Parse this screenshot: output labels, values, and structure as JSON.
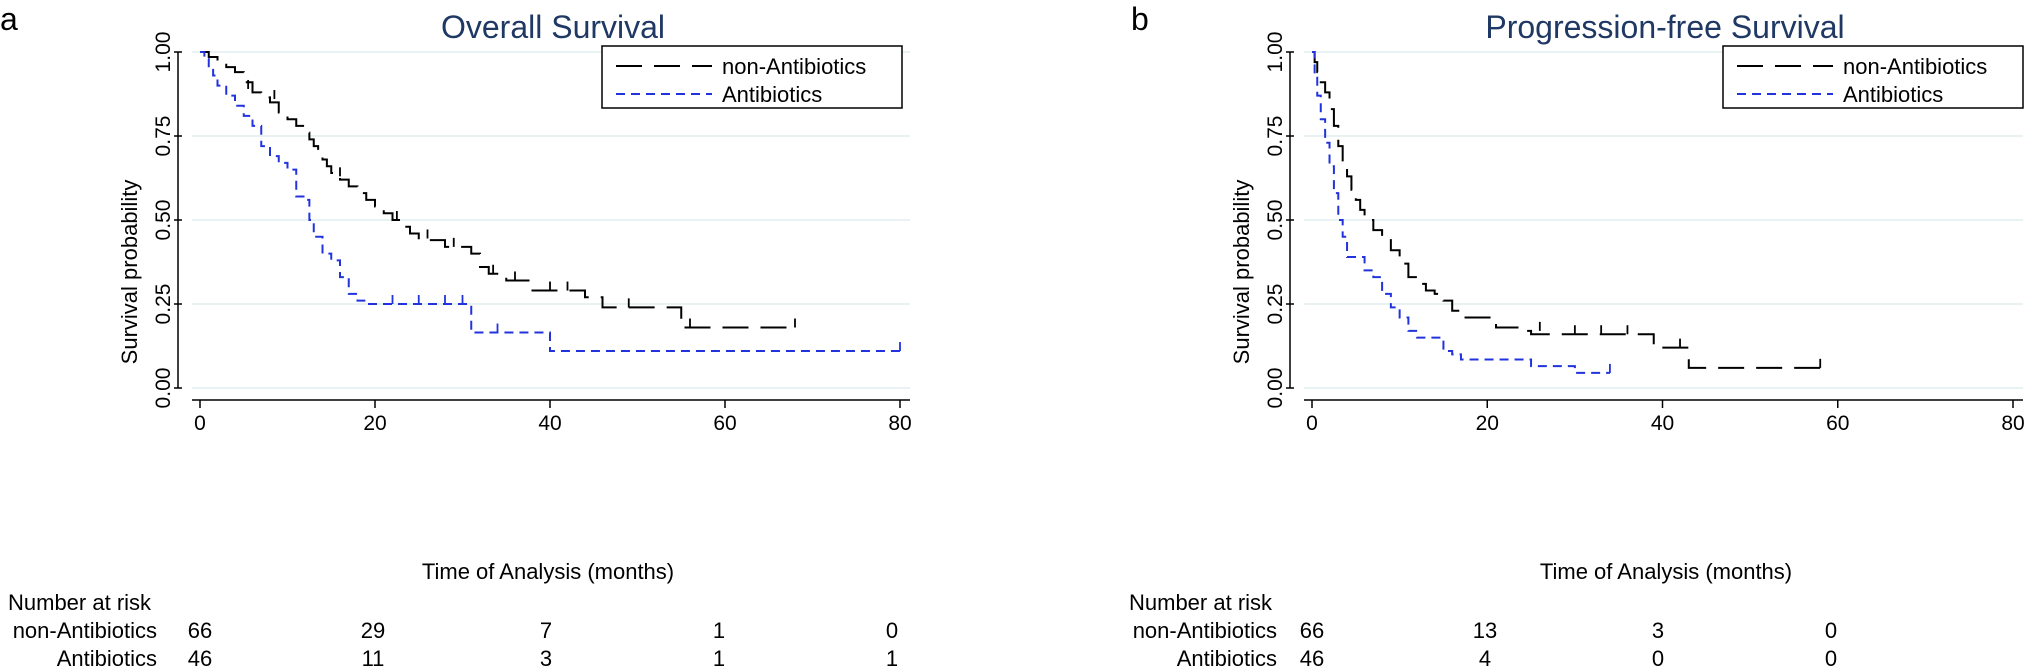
{
  "chart_data": [
    {
      "type": "line",
      "panel_label": "a",
      "title": "Overall Survival",
      "xlabel": "Time of Analysis (months)",
      "ylabel": "Survival probability",
      "xlim": [
        0,
        80
      ],
      "ylim": [
        0,
        1
      ],
      "xticks": [
        0,
        20,
        40,
        60,
        80
      ],
      "yticks": [
        "0.00",
        "0.25",
        "0.50",
        "0.75",
        "1.00"
      ],
      "grid": "horizontal",
      "legend_position": "top-right",
      "series": [
        {
          "name": "non-Antibiotics",
          "color": "#000000",
          "dash": "long-dash",
          "steps": [
            [
              0,
              1.0
            ],
            [
              1,
              0.985
            ],
            [
              2,
              0.97
            ],
            [
              3,
              0.955
            ],
            [
              4,
              0.94
            ],
            [
              5,
              0.91
            ],
            [
              6,
              0.88
            ],
            [
              7,
              0.865
            ],
            [
              8,
              0.85
            ],
            [
              9,
              0.82
            ],
            [
              10,
              0.8
            ],
            [
              11,
              0.78
            ],
            [
              12,
              0.76
            ],
            [
              12.5,
              0.74
            ],
            [
              13,
              0.72
            ],
            [
              13.5,
              0.7
            ],
            [
              14,
              0.68
            ],
            [
              14.5,
              0.66
            ],
            [
              15,
              0.64
            ],
            [
              16,
              0.62
            ],
            [
              17,
              0.6
            ],
            [
              18,
              0.58
            ],
            [
              19,
              0.56
            ],
            [
              20,
              0.54
            ],
            [
              21,
              0.52
            ],
            [
              22,
              0.5
            ],
            [
              23,
              0.48
            ],
            [
              24,
              0.46
            ],
            [
              25,
              0.44
            ],
            [
              28,
              0.42
            ],
            [
              31,
              0.4
            ],
            [
              32,
              0.36
            ],
            [
              33,
              0.34
            ],
            [
              35,
              0.32
            ],
            [
              38,
              0.29
            ],
            [
              44,
              0.27
            ],
            [
              46,
              0.24
            ],
            [
              55,
              0.18
            ],
            [
              68,
              0.18
            ]
          ],
          "censored": [
            [
              5.5,
              0.89
            ],
            [
              8.5,
              0.86
            ],
            [
              16,
              0.63
            ],
            [
              22.5,
              0.5
            ],
            [
              26,
              0.445
            ],
            [
              29,
              0.42
            ],
            [
              33.5,
              0.34
            ],
            [
              36,
              0.32
            ],
            [
              40,
              0.29
            ],
            [
              42,
              0.29
            ],
            [
              49,
              0.24
            ],
            [
              56,
              0.18
            ],
            [
              68,
              0.18
            ]
          ]
        },
        {
          "name": "Antibiotics",
          "color": "#2233dd",
          "dash": "short-dash",
          "steps": [
            [
              0,
              1.0
            ],
            [
              0.5,
              0.98
            ],
            [
              1,
              0.95
            ],
            [
              1.5,
              0.93
            ],
            [
              2,
              0.9
            ],
            [
              3,
              0.87
            ],
            [
              4,
              0.84
            ],
            [
              5,
              0.81
            ],
            [
              6,
              0.78
            ],
            [
              7,
              0.72
            ],
            [
              8,
              0.69
            ],
            [
              9,
              0.67
            ],
            [
              10,
              0.65
            ],
            [
              11,
              0.57
            ],
            [
              12,
              0.56
            ],
            [
              12.5,
              0.5
            ],
            [
              13,
              0.45
            ],
            [
              14,
              0.4
            ],
            [
              15,
              0.38
            ],
            [
              16,
              0.33
            ],
            [
              17,
              0.28
            ],
            [
              18,
              0.26
            ],
            [
              19,
              0.25
            ],
            [
              31,
              0.165
            ],
            [
              40,
              0.11
            ],
            [
              80,
              0.11
            ]
          ],
          "censored": [
            [
              22,
              0.25
            ],
            [
              25,
              0.25
            ],
            [
              28,
              0.25
            ],
            [
              30,
              0.25
            ],
            [
              34,
              0.165
            ],
            [
              80,
              0.11
            ]
          ]
        }
      ],
      "risk_table": {
        "heading": "Number at risk",
        "rows": [
          {
            "name": "non-Antibiotics",
            "values": [
              "66",
              "29",
              "7",
              "1",
              "0"
            ]
          },
          {
            "name": "Antibiotics",
            "values": [
              "46",
              "11",
              "3",
              "1",
              "1"
            ]
          }
        ]
      }
    },
    {
      "type": "line",
      "panel_label": "b",
      "title": "Progression-free Survival",
      "xlabel": "Time of Analysis (months)",
      "ylabel": "Survival probability",
      "xlim": [
        0,
        80
      ],
      "ylim": [
        0,
        1
      ],
      "xticks": [
        0,
        20,
        40,
        60,
        80
      ],
      "yticks": [
        "0.00",
        "0.25",
        "0.50",
        "0.75",
        "1.00"
      ],
      "grid": "horizontal",
      "legend_position": "top-right",
      "series": [
        {
          "name": "non-Antibiotics",
          "color": "#000000",
          "dash": "long-dash",
          "steps": [
            [
              0,
              1.0
            ],
            [
              0.3,
              0.97
            ],
            [
              0.6,
              0.94
            ],
            [
              1,
              0.91
            ],
            [
              1.5,
              0.88
            ],
            [
              2,
              0.83
            ],
            [
              2.5,
              0.78
            ],
            [
              3,
              0.72
            ],
            [
              3.5,
              0.67
            ],
            [
              4,
              0.63
            ],
            [
              4.5,
              0.59
            ],
            [
              5,
              0.56
            ],
            [
              5.5,
              0.53
            ],
            [
              6,
              0.5
            ],
            [
              7,
              0.47
            ],
            [
              8,
              0.44
            ],
            [
              9,
              0.41
            ],
            [
              10,
              0.37
            ],
            [
              11,
              0.33
            ],
            [
              12,
              0.31
            ],
            [
              13,
              0.29
            ],
            [
              14,
              0.28
            ],
            [
              15,
              0.26
            ],
            [
              16,
              0.23
            ],
            [
              17,
              0.21
            ],
            [
              19,
              0.21
            ],
            [
              21,
              0.18
            ],
            [
              24,
              0.17
            ],
            [
              25,
              0.16
            ],
            [
              38,
              0.16
            ],
            [
              39,
              0.12
            ],
            [
              42,
              0.12
            ],
            [
              43,
              0.06
            ],
            [
              58,
              0.06
            ]
          ],
          "censored": [
            [
              26,
              0.17
            ],
            [
              30,
              0.16
            ],
            [
              33,
              0.16
            ],
            [
              36,
              0.16
            ],
            [
              42,
              0.12
            ],
            [
              58,
              0.06
            ]
          ]
        },
        {
          "name": "Antibiotics",
          "color": "#2233dd",
          "dash": "short-dash",
          "steps": [
            [
              0,
              1.0
            ],
            [
              0.3,
              0.93
            ],
            [
              0.6,
              0.87
            ],
            [
              1,
              0.8
            ],
            [
              1.5,
              0.73
            ],
            [
              2,
              0.66
            ],
            [
              2.5,
              0.58
            ],
            [
              3,
              0.5
            ],
            [
              3.5,
              0.45
            ],
            [
              4,
              0.39
            ],
            [
              6,
              0.35
            ],
            [
              7,
              0.33
            ],
            [
              8,
              0.28
            ],
            [
              9,
              0.24
            ],
            [
              10,
              0.21
            ],
            [
              11,
              0.17
            ],
            [
              12,
              0.15
            ],
            [
              15,
              0.11
            ],
            [
              16,
              0.1
            ],
            [
              17,
              0.085
            ],
            [
              25,
              0.065
            ],
            [
              30,
              0.045
            ],
            [
              34,
              0.045
            ]
          ],
          "censored": [
            [
              34,
              0.045
            ]
          ]
        }
      ],
      "risk_table": {
        "heading": "Number at risk",
        "rows": [
          {
            "name": "non-Antibiotics",
            "values": [
              "66",
              "13",
              "3",
              "0"
            ]
          },
          {
            "name": "Antibiotics",
            "values": [
              "46",
              "4",
              "0",
              "0"
            ]
          }
        ]
      }
    }
  ]
}
